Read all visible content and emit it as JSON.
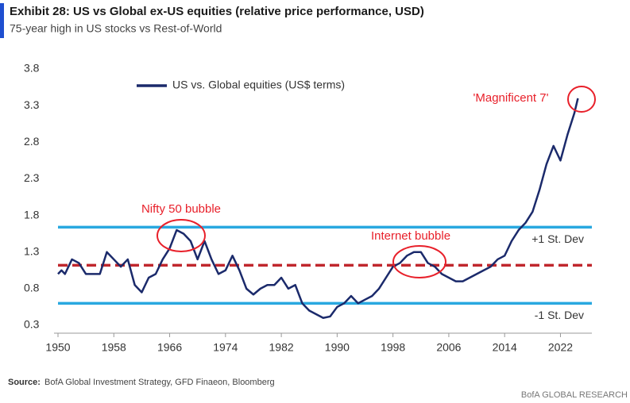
{
  "chart_data": {
    "type": "line",
    "title": "Exhibit 28: US vs Global ex-US equities (relative price performance, USD)",
    "subtitle": "75-year high in US stocks vs Rest-of-World",
    "series": [
      {
        "name": "US vs. Global equities (US$ terms)",
        "color": "#1b2a6b",
        "x": [
          1950,
          1950.5,
          1951,
          1952,
          1953,
          1954,
          1955,
          1956,
          1957,
          1958,
          1959,
          1960,
          1961,
          1962,
          1963,
          1964,
          1965,
          1966,
          1967,
          1968,
          1969,
          1970,
          1971,
          1972,
          1973,
          1974,
          1975,
          1976,
          1977,
          1978,
          1979,
          1980,
          1981,
          1982,
          1983,
          1984,
          1985,
          1986,
          1987,
          1988,
          1989,
          1990,
          1991,
          1992,
          1993,
          1994,
          1995,
          1996,
          1997,
          1998,
          1999,
          2000,
          2001,
          2002,
          2003,
          2004,
          2005,
          2006,
          2007,
          2008,
          2009,
          2010,
          2011,
          2012,
          2013,
          2014,
          2015,
          2016,
          2017,
          2018,
          2019,
          2020,
          2021,
          2022,
          2023,
          2024,
          2024.5
        ],
        "values": [
          1.0,
          1.05,
          1.0,
          1.2,
          1.15,
          1.0,
          1.0,
          1.0,
          1.3,
          1.2,
          1.1,
          1.2,
          0.85,
          0.75,
          0.95,
          1.0,
          1.2,
          1.35,
          1.6,
          1.55,
          1.45,
          1.2,
          1.45,
          1.2,
          1.0,
          1.05,
          1.25,
          1.05,
          0.8,
          0.72,
          0.8,
          0.85,
          0.85,
          0.95,
          0.8,
          0.85,
          0.6,
          0.5,
          0.45,
          0.4,
          0.42,
          0.55,
          0.6,
          0.7,
          0.6,
          0.65,
          0.7,
          0.8,
          0.95,
          1.1,
          1.15,
          1.25,
          1.3,
          1.3,
          1.15,
          1.1,
          1.0,
          0.95,
          0.9,
          0.9,
          0.95,
          1.0,
          1.05,
          1.1,
          1.2,
          1.25,
          1.45,
          1.6,
          1.7,
          1.85,
          2.15,
          2.5,
          2.75,
          2.55,
          2.9,
          3.2,
          3.4
        ]
      }
    ],
    "mean": 1.12,
    "mean_color": "#c0272d",
    "upper": 1.64,
    "upper_label": "+1 St. Dev",
    "lower": 0.6,
    "lower_label": "-1 St. Dev",
    "band_color": "#29a8e0",
    "annotations": [
      "Nifty 50 bubble",
      "Internet bubble",
      "'Magnificent 7'"
    ],
    "annotation_color": "#e8202a",
    "xlim": [
      1950,
      2026.5
    ],
    "xticks": [
      1950,
      1958,
      1966,
      1974,
      1982,
      1990,
      1998,
      2006,
      2014,
      2022
    ],
    "ylim": [
      0.3,
      3.8
    ],
    "yticks": [
      0.3,
      0.8,
      1.3,
      1.8,
      2.3,
      2.8,
      3.3,
      3.8
    ],
    "source_label": "Source:",
    "source": "BofA Global Investment Strategy, GFD Finaeon, Bloomberg",
    "footer": "BofA GLOBAL RESEARCH"
  }
}
